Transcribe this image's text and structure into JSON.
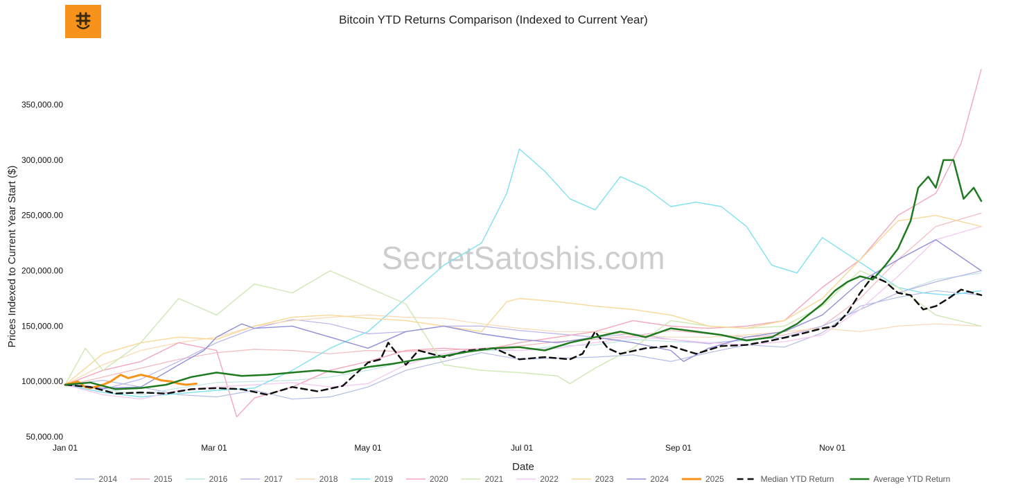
{
  "logo": {
    "icon": "bitcoin-smile-icon",
    "color": "#f7931a"
  },
  "watermark": "SecretSatoshis.com",
  "chart_data": {
    "type": "line",
    "title": "Bitcoin YTD Returns Comparison (Indexed to Current Year)",
    "xlabel": "Date",
    "ylabel": "Prices Indexed to Current Year Start ($)",
    "xlim": [
      0,
      363
    ],
    "ylim": [
      50000,
      382000
    ],
    "x_ticks": [
      {
        "day": 0,
        "label": "Jan 01"
      },
      {
        "day": 59,
        "label": "Mar 01"
      },
      {
        "day": 120,
        "label": "May 01"
      },
      {
        "day": 181,
        "label": "Jul 01"
      },
      {
        "day": 243,
        "label": "Sep 01"
      },
      {
        "day": 304,
        "label": "Nov 01"
      }
    ],
    "y_ticks": [
      {
        "value": 50000,
        "label": "50,000.00"
      },
      {
        "value": 100000,
        "label": "100,000.00"
      },
      {
        "value": 150000,
        "label": "150,000.00"
      },
      {
        "value": 200000,
        "label": "200,000.00"
      },
      {
        "value": 250000,
        "label": "250,000.00"
      },
      {
        "value": 300000,
        "label": "300,000.00"
      },
      {
        "value": 350000,
        "label": "350,000.00"
      }
    ],
    "grid": false,
    "legend_position": "bottom",
    "series": [
      {
        "name": "2014",
        "color": "#b3bde6",
        "width": 1.2,
        "bold": false,
        "x": [
          0,
          15,
          30,
          45,
          60,
          75,
          90,
          105,
          120,
          135,
          150,
          165,
          180,
          195,
          210,
          225,
          240,
          255,
          270,
          285,
          300,
          315,
          330,
          345,
          363
        ],
        "y": [
          97000,
          101000,
          95000,
          88000,
          86000,
          92000,
          84000,
          86000,
          95000,
          110000,
          118000,
          126000,
          120000,
          121000,
          122000,
          124000,
          118000,
          126000,
          133000,
          131000,
          144000,
          168000,
          176000,
          182000,
          178000
        ]
      },
      {
        "name": "2015",
        "color": "#f2b8bd",
        "width": 1.2,
        "bold": false,
        "x": [
          0,
          15,
          30,
          45,
          60,
          75,
          90,
          105,
          120,
          135,
          150,
          165,
          180,
          195,
          210,
          225,
          240,
          255,
          270,
          285,
          300,
          315,
          330,
          345,
          363
        ],
        "y": [
          96000,
          104000,
          112000,
          120000,
          126000,
          129000,
          128000,
          125000,
          128000,
          127000,
          128000,
          130000,
          132000,
          136000,
          138000,
          141000,
          146000,
          143000,
          140000,
          142000,
          150000,
          175000,
          210000,
          240000,
          252000
        ]
      },
      {
        "name": "2016",
        "color": "#bfe5e5",
        "width": 1.2,
        "bold": false,
        "x": [
          0,
          15,
          30,
          45,
          60,
          75,
          90,
          105,
          120,
          135,
          150,
          165,
          180,
          195,
          210,
          225,
          240,
          255,
          270,
          285,
          300,
          315,
          330,
          345,
          363
        ],
        "y": [
          97000,
          93000,
          88000,
          94000,
          99000,
          100000,
          101000,
          104000,
          110000,
          118000,
          125000,
          128000,
          128000,
          132000,
          133000,
          138000,
          136000,
          135000,
          137000,
          140000,
          150000,
          165000,
          180000,
          192000,
          198000
        ]
      },
      {
        "name": "2017",
        "color": "#b8b3ea",
        "width": 1.2,
        "bold": false,
        "x": [
          0,
          15,
          30,
          45,
          60,
          75,
          90,
          105,
          120,
          135,
          150,
          165,
          180,
          195,
          210,
          225,
          240,
          255,
          270,
          285,
          300,
          315,
          330,
          345,
          363
        ],
        "y": [
          97000,
          93000,
          102000,
          118000,
          135000,
          148000,
          156000,
          152000,
          143000,
          145000,
          150000,
          150000,
          146000,
          143000,
          140000,
          143000,
          138000,
          134000,
          138000,
          140000,
          150000,
          165000,
          180000,
          190000,
          200000
        ]
      },
      {
        "name": "2018",
        "color": "#f8d9b3",
        "width": 1.2,
        "bold": false,
        "x": [
          0,
          15,
          30,
          45,
          60,
          75,
          90,
          105,
          120,
          135,
          150,
          165,
          180,
          195,
          210,
          225,
          240,
          255,
          270,
          285,
          300,
          315,
          330,
          345,
          363
        ],
        "y": [
          97000,
          115000,
          128000,
          135000,
          140000,
          150000,
          155000,
          158000,
          160000,
          158000,
          157000,
          152000,
          148000,
          145000,
          145000,
          142000,
          140000,
          140000,
          142000,
          145000,
          148000,
          145000,
          150000,
          152000,
          150000
        ]
      },
      {
        "name": "2019",
        "color": "#80e0f0",
        "width": 1.4,
        "bold": true,
        "x": [
          0,
          15,
          30,
          45,
          60,
          75,
          90,
          105,
          120,
          135,
          150,
          165,
          175,
          180,
          190,
          200,
          210,
          220,
          230,
          240,
          250,
          260,
          270,
          280,
          290,
          300,
          310,
          320,
          330,
          340,
          350,
          363
        ],
        "y": [
          97000,
          90000,
          86000,
          89000,
          92000,
          94000,
          110000,
          130000,
          145000,
          175000,
          205000,
          225000,
          270000,
          310000,
          290000,
          265000,
          255000,
          285000,
          275000,
          258000,
          262000,
          258000,
          240000,
          205000,
          198000,
          230000,
          215000,
          200000,
          185000,
          180000,
          178000,
          182000
        ]
      },
      {
        "name": "2020",
        "color": "#f4a6ba",
        "width": 1.4,
        "bold": true,
        "x": [
          0,
          15,
          30,
          45,
          60,
          68,
          75,
          90,
          105,
          120,
          135,
          150,
          165,
          180,
          195,
          210,
          225,
          240,
          255,
          270,
          285,
          300,
          315,
          330,
          345,
          355,
          363
        ],
        "y": [
          97000,
          110000,
          118000,
          135000,
          128000,
          68000,
          85000,
          95000,
          110000,
          118000,
          128000,
          130000,
          128000,
          135000,
          140000,
          145000,
          155000,
          150000,
          148000,
          150000,
          155000,
          185000,
          210000,
          250000,
          270000,
          315000,
          382000
        ]
      },
      {
        "name": "2021",
        "color": "#cfe8b3",
        "width": 1.4,
        "bold": true,
        "x": [
          0,
          8,
          15,
          30,
          45,
          60,
          75,
          90,
          105,
          120,
          135,
          150,
          165,
          180,
          195,
          200,
          210,
          225,
          240,
          255,
          270,
          285,
          300,
          315,
          330,
          345,
          363
        ],
        "y": [
          97000,
          130000,
          110000,
          135000,
          175000,
          160000,
          188000,
          180000,
          200000,
          185000,
          170000,
          115000,
          110000,
          108000,
          105000,
          98000,
          112000,
          130000,
          155000,
          150000,
          148000,
          150000,
          168000,
          200000,
          185000,
          160000,
          150000
        ]
      },
      {
        "name": "2022",
        "color": "#f4ccf0",
        "width": 1.4,
        "bold": true,
        "x": [
          0,
          15,
          30,
          45,
          60,
          75,
          90,
          105,
          120,
          135,
          150,
          165,
          180,
          195,
          210,
          225,
          240,
          255,
          270,
          285,
          300,
          315,
          330,
          345,
          363
        ],
        "y": [
          97000,
          88000,
          84000,
          92000,
          95000,
          97000,
          99000,
          95000,
          98000,
          115000,
          125000,
          130000,
          128000,
          130000,
          135000,
          140000,
          138000,
          135000,
          133000,
          136000,
          142000,
          165000,
          195000,
          228000,
          240000
        ]
      },
      {
        "name": "2023",
        "color": "#f8d896",
        "width": 1.4,
        "bold": true,
        "x": [
          0,
          15,
          30,
          45,
          60,
          75,
          90,
          105,
          120,
          135,
          150,
          165,
          175,
          180,
          195,
          210,
          225,
          240,
          255,
          270,
          285,
          300,
          315,
          330,
          345,
          363
        ],
        "y": [
          97000,
          125000,
          135000,
          140000,
          138000,
          150000,
          158000,
          160000,
          157000,
          155000,
          150000,
          145000,
          172000,
          175000,
          172000,
          168000,
          165000,
          160000,
          150000,
          148000,
          155000,
          175000,
          210000,
          245000,
          250000,
          240000
        ]
      },
      {
        "name": "2024",
        "color": "#8f8fd8",
        "width": 1.4,
        "bold": true,
        "x": [
          0,
          15,
          30,
          45,
          55,
          60,
          70,
          75,
          90,
          105,
          120,
          135,
          150,
          165,
          180,
          195,
          210,
          225,
          240,
          245,
          255,
          270,
          285,
          300,
          315,
          330,
          345,
          363
        ],
        "y": [
          97000,
          94000,
          95000,
          115000,
          128000,
          140000,
          152000,
          148000,
          150000,
          140000,
          130000,
          145000,
          150000,
          143000,
          138000,
          135000,
          140000,
          135000,
          128000,
          118000,
          130000,
          140000,
          145000,
          160000,
          190000,
          210000,
          228000,
          200000
        ]
      },
      {
        "name": "2025",
        "color": "#f7931a",
        "width": 3,
        "bold": true,
        "x": [
          0,
          5,
          8,
          10,
          15,
          18,
          22,
          25,
          30,
          34,
          38,
          42,
          45,
          48,
          52
        ],
        "y": [
          97000,
          100000,
          95000,
          94000,
          97000,
          100000,
          106000,
          103000,
          106000,
          104000,
          101000,
          100000,
          98000,
          97000,
          98000
        ]
      },
      {
        "name": "Median YTD Return",
        "color": "#111111",
        "width": 2.5,
        "dash": "9,6",
        "bold": true,
        "x": [
          0,
          10,
          20,
          30,
          40,
          50,
          60,
          70,
          80,
          90,
          100,
          110,
          120,
          125,
          128,
          135,
          140,
          150,
          160,
          170,
          180,
          190,
          200,
          205,
          210,
          215,
          220,
          230,
          240,
          250,
          260,
          270,
          280,
          290,
          300,
          305,
          310,
          315,
          320,
          325,
          330,
          335,
          340,
          345,
          350,
          355,
          363
        ],
        "y": [
          97000,
          95000,
          89000,
          90000,
          89000,
          93000,
          94000,
          93000,
          88000,
          95000,
          91000,
          96000,
          117000,
          120000,
          135000,
          115000,
          128000,
          122000,
          128000,
          130000,
          120000,
          122000,
          120000,
          125000,
          145000,
          130000,
          125000,
          130000,
          132000,
          125000,
          132000,
          133000,
          137000,
          142000,
          148000,
          150000,
          162000,
          180000,
          195000,
          190000,
          180000,
          178000,
          165000,
          168000,
          175000,
          183000,
          178000
        ]
      },
      {
        "name": "Average YTD Return",
        "color": "#1e7a1e",
        "width": 2.5,
        "bold": true,
        "x": [
          0,
          10,
          20,
          30,
          40,
          50,
          60,
          70,
          80,
          90,
          100,
          110,
          120,
          130,
          140,
          150,
          160,
          170,
          180,
          190,
          200,
          210,
          220,
          230,
          240,
          250,
          260,
          270,
          280,
          290,
          300,
          305,
          310,
          315,
          320,
          325,
          330,
          335,
          338,
          342,
          345,
          348,
          352,
          356,
          360,
          363
        ],
        "y": [
          97000,
          99000,
          93000,
          94000,
          97000,
          104000,
          108000,
          105000,
          106000,
          108000,
          110000,
          108000,
          113000,
          116000,
          120000,
          123000,
          127000,
          130000,
          131000,
          128000,
          135000,
          140000,
          145000,
          140000,
          148000,
          145000,
          142000,
          137000,
          140000,
          152000,
          170000,
          182000,
          190000,
          195000,
          192000,
          205000,
          220000,
          245000,
          275000,
          285000,
          275000,
          300000,
          300000,
          265000,
          275000,
          263000
        ]
      }
    ]
  }
}
